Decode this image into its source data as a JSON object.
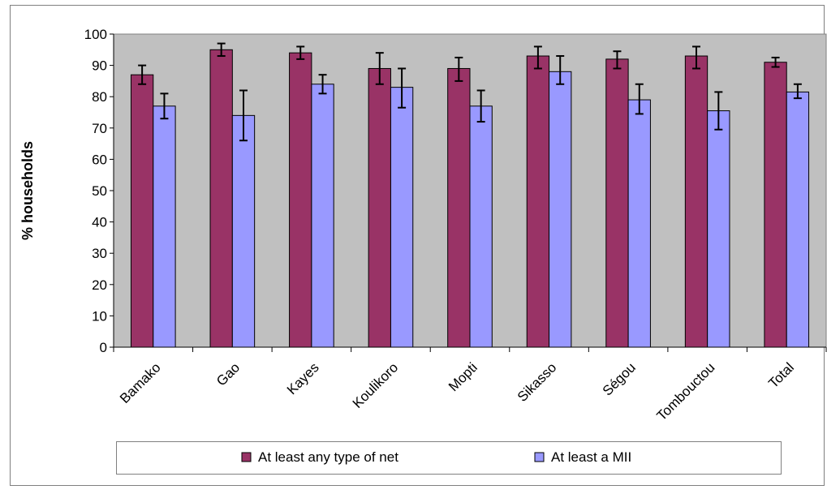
{
  "chart_data": {
    "type": "bar",
    "title": "",
    "xlabel": "",
    "ylabel": "% households",
    "ylim": [
      0,
      100
    ],
    "yticks": [
      0,
      10,
      20,
      30,
      40,
      50,
      60,
      70,
      80,
      90,
      100
    ],
    "grid": false,
    "legend_position": "bottom",
    "categories": [
      "Bamako",
      "Gao",
      "Kayes",
      "Koulikoro",
      "Mopti",
      "Sikasso",
      "Ségou",
      "Tombouctou",
      "Total"
    ],
    "series": [
      {
        "name": "At least any type of net",
        "color": "#993366",
        "values": [
          87,
          95,
          94,
          89,
          89,
          93,
          92,
          93,
          91
        ],
        "error_low": [
          84,
          93,
          92,
          84,
          85,
          89,
          89,
          89,
          89.5
        ],
        "error_high": [
          90,
          97,
          96,
          94,
          92.5,
          96,
          94.5,
          96,
          92.5
        ]
      },
      {
        "name": "At least a MII",
        "color": "#9999ff",
        "values": [
          77,
          74,
          84,
          83,
          77,
          88,
          79,
          75.5,
          81.5
        ],
        "error_low": [
          73,
          66,
          81,
          76.5,
          72,
          84,
          74.5,
          69.5,
          79.5
        ],
        "error_high": [
          81,
          82,
          87,
          89,
          82,
          93,
          84,
          81.5,
          84
        ]
      }
    ],
    "colors": {
      "plot_background": "#c0c0c0",
      "bar_outline": "#000000",
      "error_bar": "#000000"
    }
  }
}
